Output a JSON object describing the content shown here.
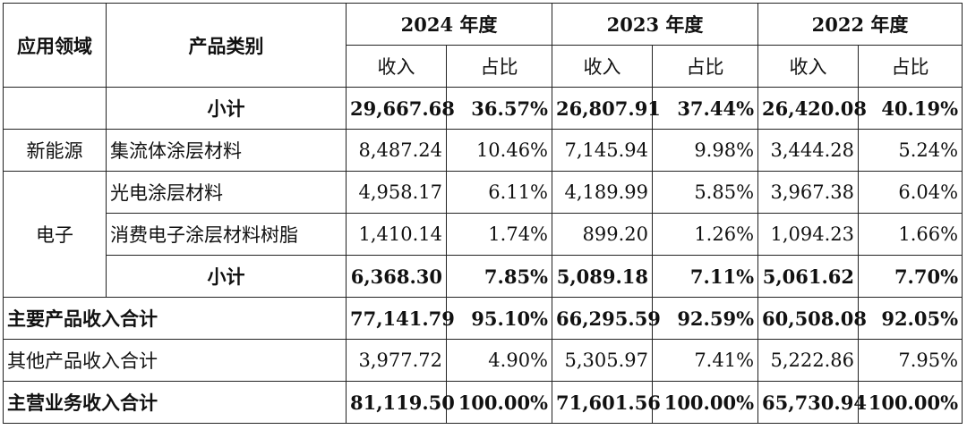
{
  "header": {
    "domain_col": "应用领域",
    "category_col": "产品类别",
    "years": [
      "2024 年度",
      "2023 年度",
      "2022 年度"
    ],
    "revenue": "收入",
    "share": "占比"
  },
  "top_subtotal": {
    "label": "小计",
    "values": [
      "29,667.68",
      "36.57%",
      "26,807.91",
      "37.44%",
      "26,420.08",
      "40.19%"
    ]
  },
  "new_energy": {
    "domain": "新能源",
    "category": "集流体涂层材料",
    "values": [
      "8,487.24",
      "10.46%",
      "7,145.94",
      "9.98%",
      "3,444.28",
      "5.24%"
    ]
  },
  "electronics": {
    "domain": "电子",
    "rows": [
      {
        "category": "光电涂层材料",
        "values": [
          "4,958.17",
          "6.11%",
          "4,189.99",
          "5.85%",
          "3,967.38",
          "6.04%"
        ]
      },
      {
        "category": "消费电子涂层材料树脂",
        "values": [
          "1,410.14",
          "1.74%",
          "899.20",
          "1.26%",
          "1,094.23",
          "1.66%"
        ]
      }
    ],
    "subtotal": {
      "label": "小计",
      "values": [
        "6,368.30",
        "7.85%",
        "5,089.18",
        "7.11%",
        "5,061.62",
        "7.70%"
      ]
    }
  },
  "totals": [
    {
      "label": "主要产品收入合计",
      "bold": true,
      "values": [
        "77,141.79",
        "95.10%",
        "66,295.59",
        "92.59%",
        "60,508.08",
        "92.05%"
      ]
    },
    {
      "label": "其他产品收入合计",
      "bold": false,
      "values": [
        "3,977.72",
        "4.90%",
        "5,305.97",
        "7.41%",
        "5,222.86",
        "7.95%"
      ]
    },
    {
      "label": "主营业务收入合计",
      "bold": true,
      "values": [
        "81,119.50",
        "100.00%",
        "71,601.56",
        "100.00%",
        "65,730.94",
        "100.00%"
      ]
    }
  ]
}
